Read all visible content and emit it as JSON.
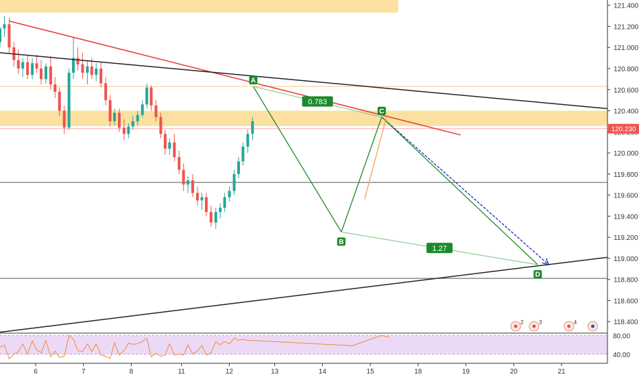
{
  "chart_data": {
    "type": "candlestick",
    "instrument_note": "",
    "price_axis": {
      "ticks": [
        "121.400",
        "121.200",
        "121.000",
        "120.800",
        "120.600",
        "120.400",
        "120.200",
        "120.000",
        "119.800",
        "119.600",
        "119.400",
        "119.200",
        "119.000",
        "118.800",
        "118.600",
        "118.400"
      ],
      "range": [
        118.33,
        121.45
      ]
    },
    "time_axis": {
      "ticks": [
        "6",
        "7",
        "8",
        "11",
        "12",
        "13",
        "14",
        "15",
        "18",
        "19",
        "20",
        "21"
      ],
      "range": [
        5.4,
        21.95
      ]
    },
    "current_price": {
      "label": "120.230",
      "value": 120.23,
      "color": "#ef5350"
    },
    "zones": [
      {
        "name": "supply-zone-top",
        "from": 121.33,
        "to": 121.45,
        "x_from": 5.4,
        "x_to": 16.25,
        "color": "#fbe0a0"
      },
      {
        "name": "supply-zone-mid",
        "from": 120.255,
        "to": 120.4,
        "x_from": 5.4,
        "x_to": 21.95,
        "color": "#fbe0a0"
      }
    ],
    "horizontal_lines": [
      {
        "name": "level-120-63",
        "price": 120.63,
        "color": "#f5c77a"
      },
      {
        "name": "level-119-72",
        "price": 119.72,
        "color": "#555555"
      },
      {
        "name": "level-118-81",
        "price": 118.81,
        "color": "#555555"
      }
    ],
    "trend_lines": [
      {
        "name": "red-resistance",
        "p1": [
          5.65,
          121.25
        ],
        "p2": [
          17.95,
          120.17
        ],
        "color": "#e53935"
      },
      {
        "name": "black-resistance",
        "p1": [
          5.4,
          120.95
        ],
        "p2": [
          21.95,
          120.42
        ],
        "color": "#222222"
      },
      {
        "name": "black-support",
        "p1": [
          5.4,
          118.3
        ],
        "p2": [
          21.95,
          119.01
        ],
        "color": "#222222"
      }
    ],
    "harmonic": {
      "points": [
        {
          "label": "A",
          "x": 12.3,
          "y": 120.63
        },
        {
          "label": "B",
          "x": 14.7,
          "y": 119.25
        },
        {
          "label": "C",
          "x": 15.8,
          "y": 120.34
        },
        {
          "label": "D",
          "x": 20.05,
          "y": 118.94
        }
      ],
      "ratios": [
        {
          "label": "0.783",
          "between": [
            "A",
            "C"
          ]
        },
        {
          "label": "1.27",
          "between": [
            "B",
            "D"
          ]
        }
      ],
      "color": "#1b8a2a"
    },
    "projection_arrow": {
      "from": [
        15.8,
        120.34
      ],
      "to": [
        20.35,
        118.94
      ],
      "color": "#1a2fb8"
    },
    "candles_series": [
      [
        5.4,
        121.05,
        121.2,
        121.0,
        121.18
      ],
      [
        5.52,
        121.18,
        121.3,
        121.1,
        121.22
      ],
      [
        5.65,
        121.22,
        121.28,
        120.95,
        121.0
      ],
      [
        5.78,
        121.0,
        121.05,
        120.82,
        120.88
      ],
      [
        5.9,
        120.88,
        120.98,
        120.75,
        120.8
      ],
      [
        6.02,
        120.8,
        120.9,
        120.72,
        120.86
      ],
      [
        6.15,
        120.86,
        120.92,
        120.7,
        120.74
      ],
      [
        6.28,
        120.74,
        120.9,
        120.7,
        120.85
      ],
      [
        6.4,
        120.85,
        120.93,
        120.76,
        120.8
      ],
      [
        6.52,
        120.8,
        120.88,
        120.65,
        120.7
      ],
      [
        6.65,
        120.7,
        120.85,
        120.66,
        120.82
      ],
      [
        6.78,
        120.82,
        120.92,
        120.6,
        120.65
      ],
      [
        6.9,
        120.65,
        120.72,
        120.52,
        120.58
      ],
      [
        7.02,
        120.58,
        120.62,
        120.35,
        120.4
      ],
      [
        7.15,
        120.4,
        120.45,
        120.18,
        120.24
      ],
      [
        7.28,
        120.24,
        120.8,
        120.22,
        120.76
      ],
      [
        7.4,
        120.76,
        121.1,
        120.7,
        120.9
      ],
      [
        7.52,
        120.9,
        121.0,
        120.78,
        120.84
      ],
      [
        7.65,
        120.84,
        120.95,
        120.7,
        120.76
      ],
      [
        7.78,
        120.76,
        120.88,
        120.65,
        120.82
      ],
      [
        7.9,
        120.82,
        120.9,
        120.7,
        120.74
      ],
      [
        8.02,
        120.74,
        120.85,
        120.68,
        120.8
      ],
      [
        8.15,
        120.8,
        120.86,
        120.62,
        120.66
      ],
      [
        8.28,
        120.66,
        120.72,
        120.45,
        120.5
      ],
      [
        8.4,
        120.5,
        120.55,
        120.25,
        120.3
      ],
      [
        8.52,
        120.3,
        120.42,
        120.26,
        120.38
      ],
      [
        8.65,
        120.38,
        120.42,
        120.2,
        120.24
      ],
      [
        8.78,
        120.24,
        120.32,
        120.12,
        120.18
      ],
      [
        8.9,
        120.18,
        120.28,
        120.14,
        120.25
      ],
      [
        9.02,
        120.25,
        120.35,
        120.22,
        120.3
      ],
      [
        9.15,
        120.3,
        120.4,
        120.26,
        120.36
      ],
      [
        9.28,
        120.36,
        120.5,
        120.34,
        120.46
      ],
      [
        9.4,
        120.46,
        120.66,
        120.42,
        120.62
      ],
      [
        9.52,
        120.62,
        120.64,
        120.4,
        120.45
      ],
      [
        9.65,
        120.45,
        120.5,
        120.3,
        120.34
      ],
      [
        9.78,
        120.34,
        120.38,
        120.14,
        120.18
      ],
      [
        9.9,
        120.18,
        120.22,
        119.98,
        120.04
      ],
      [
        10.02,
        120.04,
        120.14,
        119.98,
        120.1
      ],
      [
        10.15,
        120.1,
        120.18,
        119.92,
        119.96
      ],
      [
        10.28,
        119.96,
        120.02,
        119.8,
        119.84
      ],
      [
        10.4,
        119.84,
        119.9,
        119.64,
        119.7
      ],
      [
        10.52,
        119.7,
        119.78,
        119.62,
        119.74
      ],
      [
        10.65,
        119.74,
        119.8,
        119.58,
        119.62
      ],
      [
        10.78,
        119.62,
        119.68,
        119.5,
        119.55
      ],
      [
        10.9,
        119.55,
        119.62,
        119.46,
        119.58
      ],
      [
        11.02,
        119.58,
        119.62,
        119.4,
        119.44
      ],
      [
        11.15,
        119.44,
        119.5,
        119.3,
        119.34
      ],
      [
        11.28,
        119.34,
        119.48,
        119.28,
        119.44
      ],
      [
        11.4,
        119.44,
        119.52,
        119.38,
        119.48
      ],
      [
        11.52,
        119.48,
        119.62,
        119.44,
        119.58
      ],
      [
        11.65,
        119.58,
        119.68,
        119.54,
        119.64
      ],
      [
        11.78,
        119.64,
        119.84,
        119.6,
        119.8
      ],
      [
        11.9,
        119.8,
        119.96,
        119.76,
        119.92
      ],
      [
        12.02,
        119.92,
        120.1,
        119.88,
        120.06
      ],
      [
        12.15,
        120.06,
        120.22,
        120.0,
        120.18
      ],
      [
        12.28,
        120.18,
        120.34,
        120.12,
        120.3
      ]
    ],
    "oscillator": {
      "ticks": [
        "80.00",
        "40.00"
      ],
      "range": [
        28,
        82
      ],
      "band": [
        40,
        80
      ],
      "line_color": "#f08a3c",
      "band_color": "#ecd9f5"
    },
    "event_icons": [
      {
        "name": "event-icon-2",
        "label": "2",
        "x": 19.45
      },
      {
        "name": "event-icon-3",
        "label": "3",
        "x": 19.95
      },
      {
        "name": "event-icon-4",
        "label": "4",
        "x": 20.9
      },
      {
        "name": "event-icon-globe",
        "label": "",
        "x": 21.55
      }
    ]
  }
}
